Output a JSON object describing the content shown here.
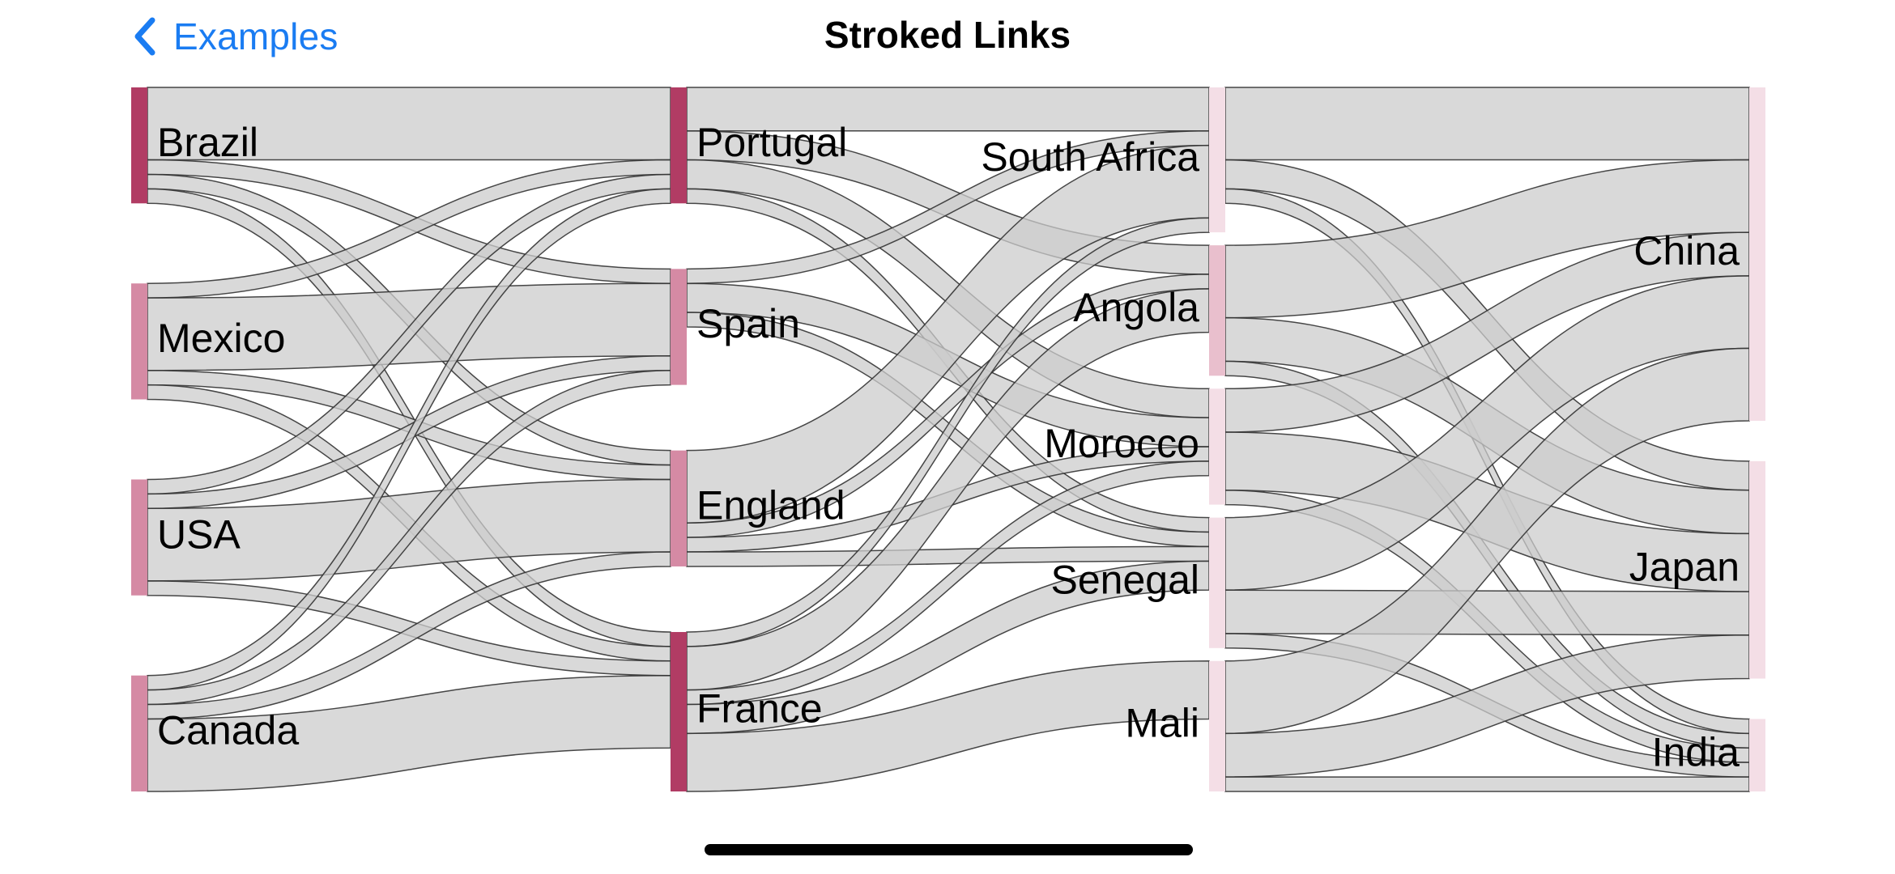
{
  "nav": {
    "back_label": "Examples",
    "back_icon": "chevron-left-icon",
    "title": "Stroked Links"
  },
  "colors": {
    "accent": "#1a7cf2",
    "link_fill": "#cccccc",
    "link_stroke": "#333333",
    "node_colors": [
      "#b13c64",
      "#d58aa4",
      "#e9bfcd",
      "#f4dee6"
    ]
  },
  "chart_data": {
    "type": "sankey",
    "title": "",
    "columns": [
      [
        "Brazil",
        "Mexico",
        "USA",
        "Canada"
      ],
      [
        "Portugal",
        "Spain",
        "England",
        "France"
      ],
      [
        "South Africa",
        "Angola",
        "Morocco",
        "Senegal",
        "Mali"
      ],
      [
        "China",
        "Japan",
        "India"
      ]
    ],
    "nodes": [
      {
        "name": "Brazil",
        "column": 0,
        "shade": 0
      },
      {
        "name": "Mexico",
        "column": 0,
        "shade": 1
      },
      {
        "name": "USA",
        "column": 0,
        "shade": 1
      },
      {
        "name": "Canada",
        "column": 0,
        "shade": 1
      },
      {
        "name": "Portugal",
        "column": 1,
        "shade": 0
      },
      {
        "name": "Spain",
        "column": 1,
        "shade": 1
      },
      {
        "name": "England",
        "column": 1,
        "shade": 1
      },
      {
        "name": "France",
        "column": 1,
        "shade": 0
      },
      {
        "name": "South Africa",
        "column": 2,
        "shade": 3
      },
      {
        "name": "Angola",
        "column": 2,
        "shade": 2
      },
      {
        "name": "Morocco",
        "column": 2,
        "shade": 3
      },
      {
        "name": "Senegal",
        "column": 2,
        "shade": 3
      },
      {
        "name": "Mali",
        "column": 2,
        "shade": 3
      },
      {
        "name": "China",
        "column": 3,
        "shade": 3
      },
      {
        "name": "Japan",
        "column": 3,
        "shade": 3
      },
      {
        "name": "India",
        "column": 3,
        "shade": 3
      }
    ],
    "links": [
      {
        "source": "Brazil",
        "target": "Portugal",
        "value": 5
      },
      {
        "source": "Brazil",
        "target": "Spain",
        "value": 1
      },
      {
        "source": "Brazil",
        "target": "England",
        "value": 1
      },
      {
        "source": "Brazil",
        "target": "France",
        "value": 1
      },
      {
        "source": "Mexico",
        "target": "Portugal",
        "value": 1
      },
      {
        "source": "Mexico",
        "target": "Spain",
        "value": 5
      },
      {
        "source": "Mexico",
        "target": "England",
        "value": 1
      },
      {
        "source": "Mexico",
        "target": "France",
        "value": 1
      },
      {
        "source": "USA",
        "target": "Portugal",
        "value": 1
      },
      {
        "source": "USA",
        "target": "Spain",
        "value": 1
      },
      {
        "source": "USA",
        "target": "England",
        "value": 5
      },
      {
        "source": "USA",
        "target": "France",
        "value": 1
      },
      {
        "source": "Canada",
        "target": "Portugal",
        "value": 1
      },
      {
        "source": "Canada",
        "target": "Spain",
        "value": 1
      },
      {
        "source": "Canada",
        "target": "England",
        "value": 1
      },
      {
        "source": "Canada",
        "target": "France",
        "value": 5
      },
      {
        "source": "Portugal",
        "target": "South Africa",
        "value": 3
      },
      {
        "source": "Portugal",
        "target": "Angola",
        "value": 2
      },
      {
        "source": "Portugal",
        "target": "Morocco",
        "value": 2
      },
      {
        "source": "Portugal",
        "target": "Senegal",
        "value": 1
      },
      {
        "source": "Spain",
        "target": "South Africa",
        "value": 1
      },
      {
        "source": "Spain",
        "target": "Morocco",
        "value": 2
      },
      {
        "source": "Spain",
        "target": "Senegal",
        "value": 1
      },
      {
        "source": "England",
        "target": "South Africa",
        "value": 5
      },
      {
        "source": "England",
        "target": "Angola",
        "value": 1
      },
      {
        "source": "England",
        "target": "Morocco",
        "value": 1
      },
      {
        "source": "England",
        "target": "Senegal",
        "value": 1
      },
      {
        "source": "France",
        "target": "South Africa",
        "value": 1
      },
      {
        "source": "France",
        "target": "Angola",
        "value": 3
      },
      {
        "source": "France",
        "target": "Morocco",
        "value": 1
      },
      {
        "source": "France",
        "target": "Senegal",
        "value": 2
      },
      {
        "source": "France",
        "target": "Mali",
        "value": 4
      },
      {
        "source": "South Africa",
        "target": "China",
        "value": 5
      },
      {
        "source": "South Africa",
        "target": "Japan",
        "value": 2
      },
      {
        "source": "South Africa",
        "target": "India",
        "value": 1
      },
      {
        "source": "Angola",
        "target": "China",
        "value": 5
      },
      {
        "source": "Angola",
        "target": "Japan",
        "value": 3
      },
      {
        "source": "Angola",
        "target": "India",
        "value": 1
      },
      {
        "source": "Morocco",
        "target": "China",
        "value": 3
      },
      {
        "source": "Morocco",
        "target": "Japan",
        "value": 4
      },
      {
        "source": "Morocco",
        "target": "India",
        "value": 1
      },
      {
        "source": "Senegal",
        "target": "China",
        "value": 5
      },
      {
        "source": "Senegal",
        "target": "Japan",
        "value": 3
      },
      {
        "source": "Senegal",
        "target": "India",
        "value": 1
      },
      {
        "source": "Mali",
        "target": "China",
        "value": 5
      },
      {
        "source": "Mali",
        "target": "Japan",
        "value": 3
      },
      {
        "source": "Mali",
        "target": "India",
        "value": 1
      }
    ]
  }
}
